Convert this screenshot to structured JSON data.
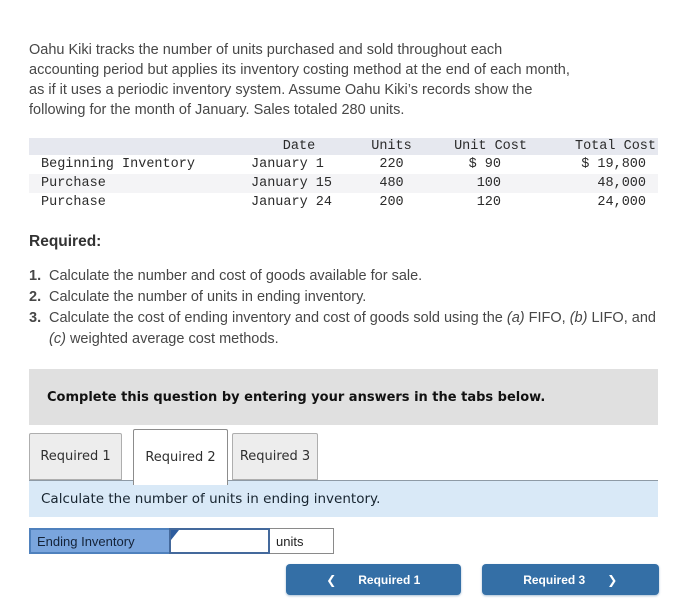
{
  "intro": {
    "lines": [
      "Oahu Kiki tracks the number of units purchased and sold throughout each",
      "accounting period but applies its inventory costing method at the end of each month,",
      "as if it uses a periodic inventory system. Assume Oahu Kiki’s records show the",
      "following for the month of January. Sales totaled 280 units."
    ]
  },
  "inventory_table": {
    "headers": {
      "label": "",
      "date": "Date",
      "units": "Units",
      "unit_cost": "Unit Cost",
      "total_cost": "Total Cost"
    },
    "rows": [
      {
        "label": "Beginning Inventory",
        "date": "January 1",
        "units": "220",
        "unit_cost": "$ 90",
        "total_cost": "$ 19,800"
      },
      {
        "label": "Purchase",
        "date": "January 15",
        "units": "480",
        "unit_cost": "100",
        "total_cost": "48,000"
      },
      {
        "label": "Purchase",
        "date": "January 24",
        "units": "200",
        "unit_cost": "120",
        "total_cost": "24,000"
      }
    ]
  },
  "required": {
    "heading": "Required:",
    "items": [
      {
        "number": "1.",
        "text": "Calculate the number and cost of goods available for sale."
      },
      {
        "number": "2.",
        "text": "Calculate the number of units in ending inventory."
      },
      {
        "number": "3.",
        "parts": {
          "p1": "Calculate the cost of ending inventory and cost of goods sold using the ",
          "a": "(a)",
          "p2": " FIFO, ",
          "b": "(b)",
          "p3": " LIFO, and ",
          "c": "(c)",
          "p4": " weighted average cost methods."
        }
      }
    ]
  },
  "complete_banner": {
    "text": "Complete this question by entering your answers in the tabs below."
  },
  "tabs": [
    {
      "label": "Required 1",
      "active": false
    },
    {
      "label": "Required 2",
      "active": true
    },
    {
      "label": "Required 3",
      "active": false
    }
  ],
  "task_bar": {
    "text": "Calculate the number of units in ending inventory."
  },
  "answer_row": {
    "label": "Ending Inventory",
    "input_value": "",
    "unit_label": "units"
  },
  "nav": {
    "prev_label": "Required 1",
    "prev_chevron": "❮",
    "next_label": "Required 3",
    "next_chevron": "❯"
  },
  "colors": {
    "button_blue": "#346fa6",
    "answer_label_blue": "#7aa5dd",
    "answer_border_blue": "#4f81bd",
    "flag_marker_blue": "#2d5c9e",
    "task_bar_blue": "#d9e9f7",
    "banner_gray": "#e0e0e0",
    "table_header_bg": "#e6e8ef",
    "table_stripe_bg": "#f4f4f6"
  }
}
